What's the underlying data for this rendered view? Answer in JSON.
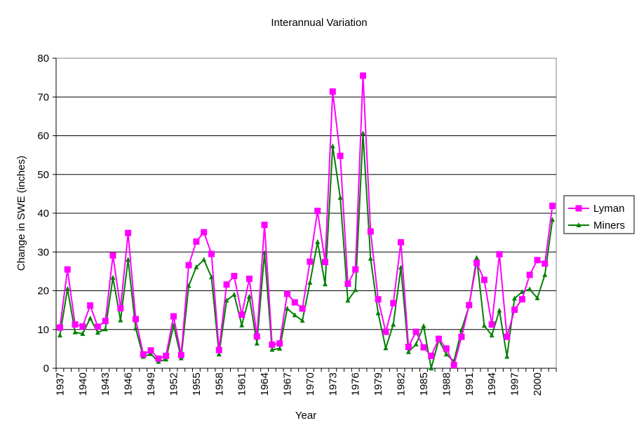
{
  "chart_data": {
    "type": "line",
    "title": "Interannual Variation",
    "xlabel": "Year",
    "ylabel": "Change in SWE (inches)",
    "x": [
      1937,
      1938,
      1939,
      1940,
      1941,
      1942,
      1943,
      1944,
      1945,
      1946,
      1947,
      1948,
      1949,
      1950,
      1951,
      1952,
      1953,
      1954,
      1955,
      1956,
      1957,
      1958,
      1959,
      1960,
      1961,
      1962,
      1963,
      1964,
      1965,
      1966,
      1967,
      1968,
      1969,
      1970,
      1971,
      1972,
      1973,
      1974,
      1975,
      1976,
      1977,
      1978,
      1979,
      1980,
      1981,
      1982,
      1983,
      1984,
      1985,
      1986,
      1987,
      1988,
      1989,
      1990,
      1991,
      1992,
      1993,
      1994,
      1995,
      1996,
      1997,
      1998,
      1999,
      2000,
      2001,
      2002
    ],
    "xticks": [
      "1937",
      "1940",
      "1943",
      "1946",
      "1949",
      "1952",
      "1955",
      "1958",
      "1961",
      "1964",
      "1967",
      "1970",
      "1973",
      "1976",
      "1979",
      "1982",
      "1985",
      "1988",
      "1991",
      "1994",
      "1997",
      "2000"
    ],
    "yticks": [
      "0",
      "10",
      "20",
      "30",
      "40",
      "50",
      "60",
      "70",
      "80"
    ],
    "ylim": [
      0,
      80
    ],
    "grid": "horizontal",
    "legend_position": "right",
    "series": [
      {
        "name": "Lyman",
        "color": "#ff00ff",
        "marker": "square",
        "values": [
          10.5,
          25.5,
          11.3,
          10.8,
          16.2,
          10.7,
          12.2,
          29.1,
          15.5,
          34.9,
          12.7,
          3.6,
          4.6,
          2.5,
          3.2,
          13.4,
          3.4,
          26.6,
          32.7,
          35.1,
          29.5,
          4.7,
          21.6,
          23.8,
          13.8,
          23.1,
          8.2,
          37.0,
          6.1,
          6.4,
          19.2,
          17.0,
          15.4,
          27.5,
          40.6,
          27.4,
          71.4,
          54.8,
          21.8,
          25.5,
          75.5,
          35.3,
          17.8,
          9.4,
          16.8,
          32.5,
          5.5,
          9.4,
          5.4,
          3.2,
          7.6,
          5.1,
          0.8,
          8.1,
          16.3,
          27.2,
          22.8,
          11.3,
          29.4,
          8.1,
          15.1,
          17.8,
          24.1,
          27.9,
          27.0,
          41.9
        ]
      },
      {
        "name": "Miners",
        "color": "#008000",
        "marker": "triangle",
        "values": [
          8.5,
          20.5,
          9.3,
          8.9,
          12.9,
          9.2,
          10.1,
          23.4,
          12.4,
          28.0,
          10.3,
          3.0,
          3.7,
          1.7,
          2.3,
          11.1,
          2.6,
          21.3,
          26.1,
          28.0,
          23.5,
          3.6,
          17.5,
          19.0,
          11.1,
          18.5,
          6.4,
          29.8,
          4.8,
          5.1,
          15.4,
          13.7,
          12.3,
          22.1,
          32.6,
          21.7,
          57.3,
          44.0,
          17.5,
          20.2,
          60.6,
          28.3,
          14.2,
          5.2,
          11.3,
          26.0,
          4.2,
          6.2,
          10.9,
          0.0,
          7.3,
          3.6,
          1.8,
          9.9,
          16.1,
          28.5,
          11.0,
          8.5,
          14.9,
          3.0,
          18.0,
          19.7,
          20.4,
          18.1,
          24.1,
          38.3
        ]
      }
    ]
  }
}
